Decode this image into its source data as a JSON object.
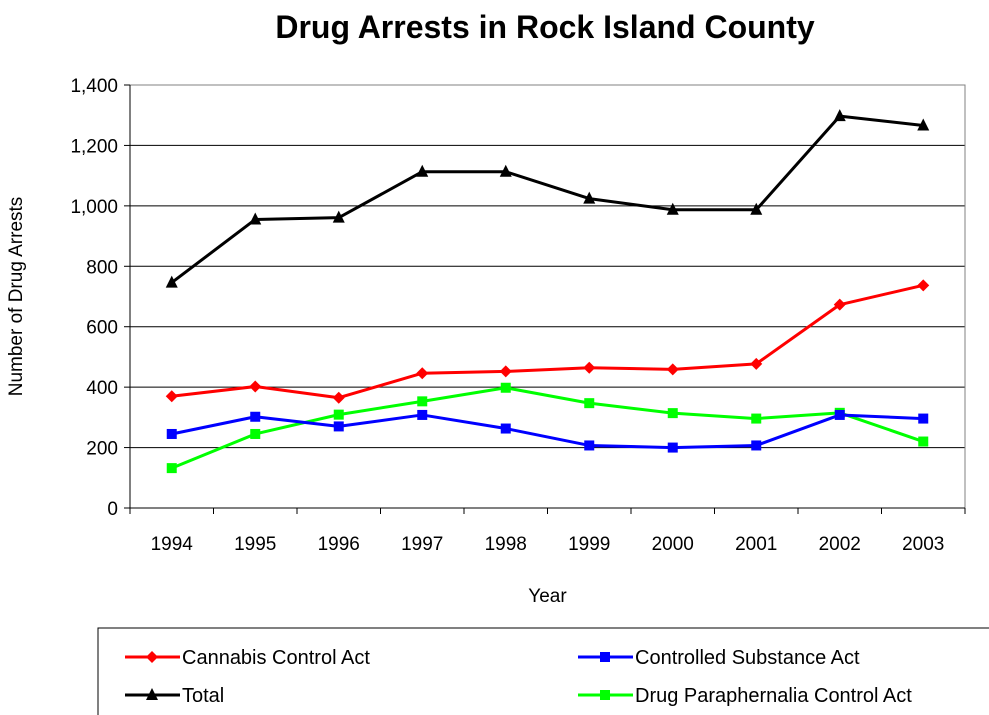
{
  "chart_data": {
    "type": "line",
    "title": "Drug Arrests in Rock Island County",
    "xlabel": "Year",
    "ylabel": "Number of Drug Arrests",
    "ylim": [
      0,
      1400
    ],
    "ytick_step": 200,
    "ytick_labels": [
      "0",
      "200",
      "400",
      "600",
      "800",
      "1,000",
      "1,200",
      "1,400"
    ],
    "categories": [
      "1994",
      "1995",
      "1996",
      "1997",
      "1998",
      "1999",
      "2000",
      "2001",
      "2002",
      "2003"
    ],
    "grid": "horizontal",
    "legend_position": "bottom",
    "series": [
      {
        "name": "Cannabis Control Act",
        "color": "#ff0000",
        "marker": "diamond",
        "values": [
          370,
          402,
          365,
          446,
          452,
          464,
          459,
          477,
          673,
          737
        ]
      },
      {
        "name": "Controlled Substance Act",
        "color": "#0000ff",
        "marker": "square",
        "values": [
          245,
          302,
          270,
          308,
          263,
          207,
          200,
          207,
          308,
          296
        ]
      },
      {
        "name": "Total",
        "color": "#000000",
        "marker": "triangle",
        "values": [
          746,
          955,
          961,
          1113,
          1113,
          1024,
          987,
          987,
          1297,
          1266
        ]
      },
      {
        "name": "Drug Paraphernalia Control Act",
        "color": "#00ff00",
        "marker": "square",
        "values": [
          132,
          245,
          309,
          353,
          398,
          347,
          314,
          296,
          315,
          220
        ]
      }
    ]
  }
}
